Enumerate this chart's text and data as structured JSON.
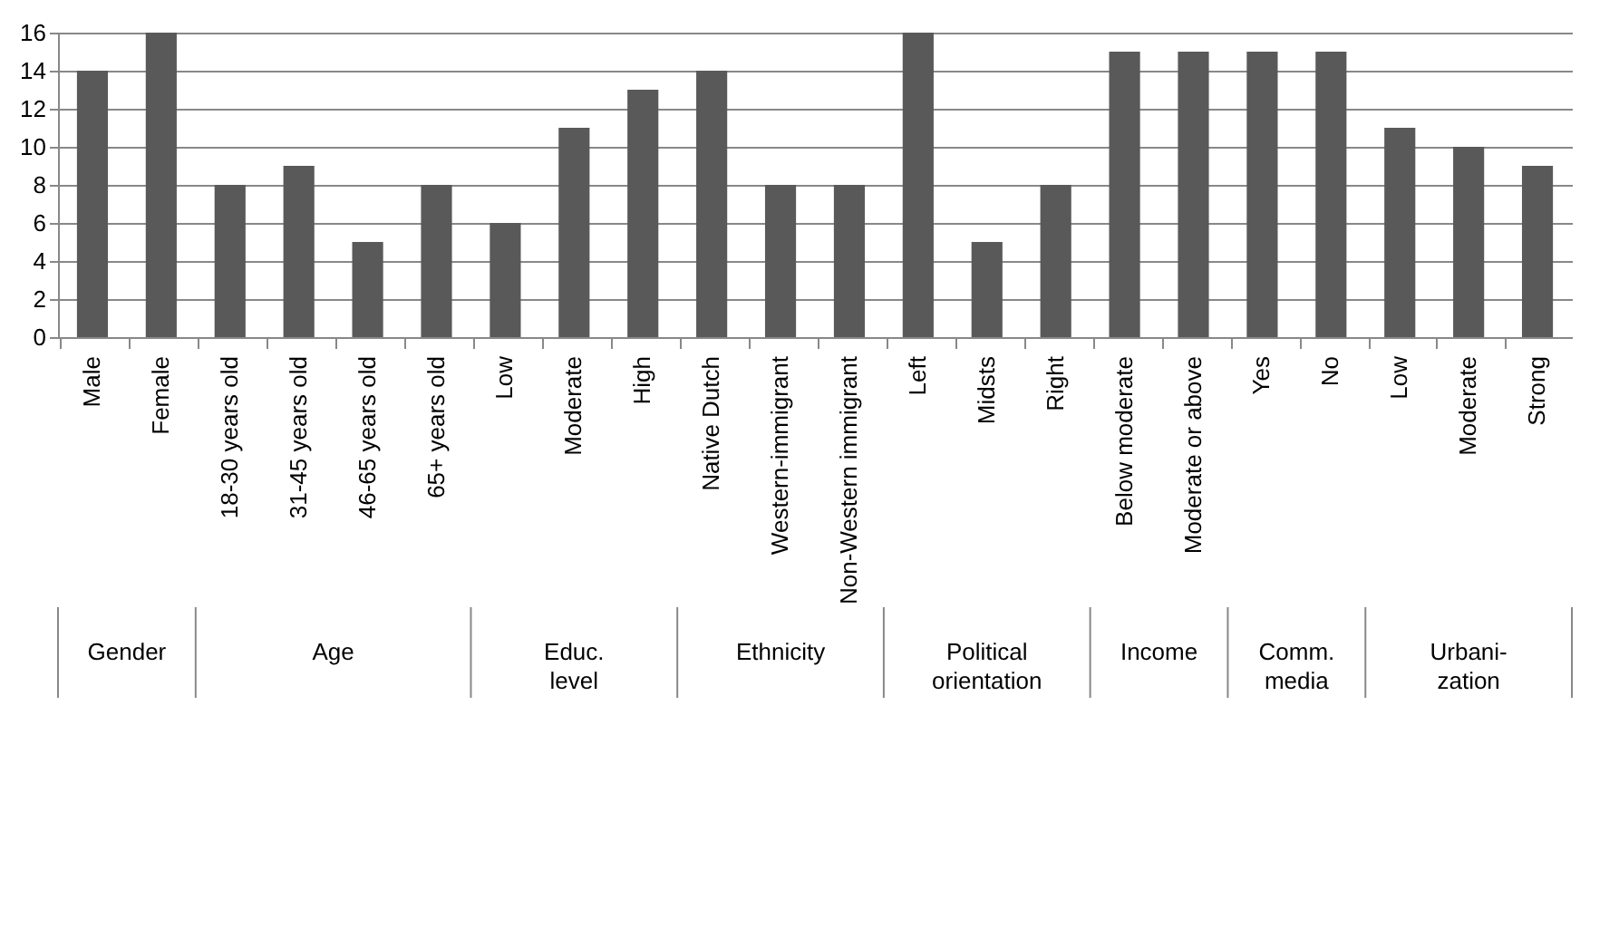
{
  "chart_data": {
    "type": "bar",
    "categories": [
      "Male",
      "Female",
      "18-30 years old",
      "31-45 years old",
      "46-65 years old",
      "65+ years old",
      "Low",
      "Moderate",
      "High",
      "Native Dutch",
      "Western-immigrant",
      "Non-Western immigrant",
      "Left",
      "Midsts",
      "Right",
      "Below moderate",
      "Moderate or above",
      "Yes",
      "No",
      "Low",
      "Moderate",
      "Strong"
    ],
    "values": [
      14,
      16,
      8,
      9,
      5,
      8,
      6,
      11,
      13,
      14,
      8,
      8,
      16,
      5,
      8,
      15,
      15,
      15,
      15,
      11,
      10,
      9
    ],
    "color": "#595959",
    "ylim": [
      0,
      16
    ],
    "yticks": [
      0,
      2,
      4,
      6,
      8,
      10,
      12,
      14,
      16
    ],
    "grid": "y",
    "annotations": [
      "Gender",
      "Age",
      "Educ. level",
      "Ethnicity",
      "Political orientation",
      "Income",
      "Comm. media",
      "Urbani-zation"
    ]
  }
}
